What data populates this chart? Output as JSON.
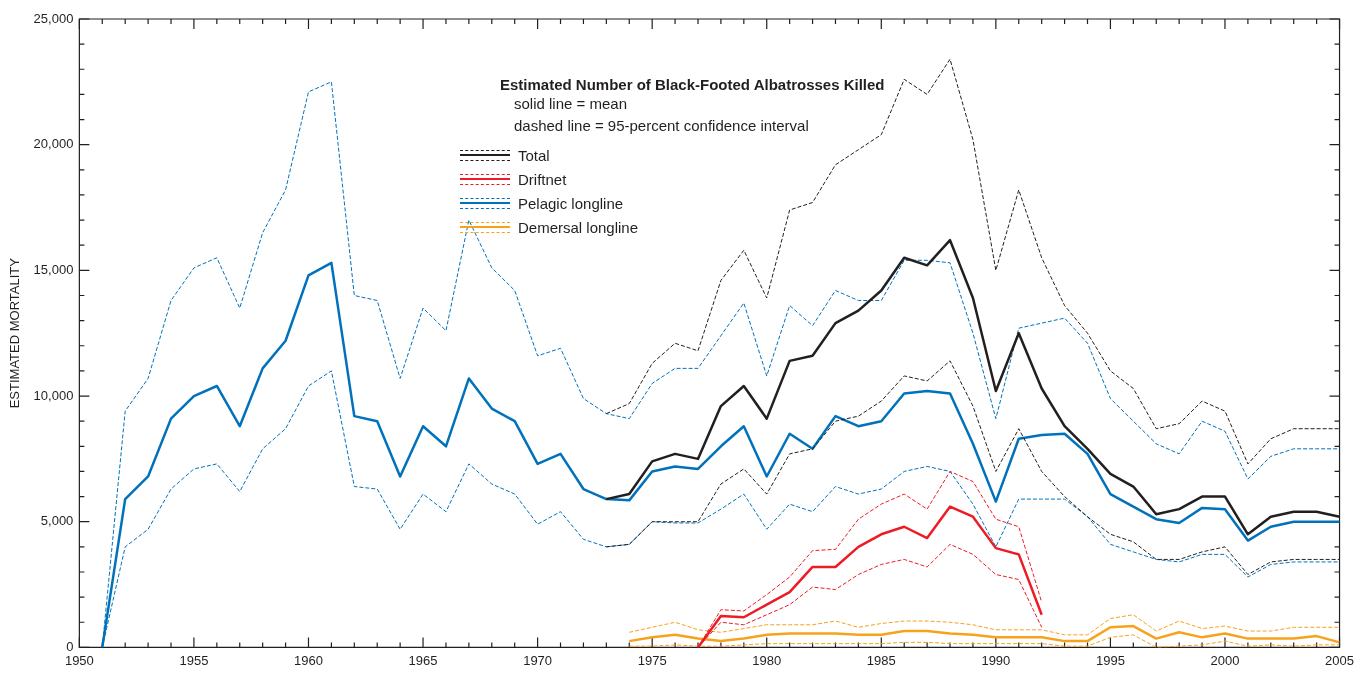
{
  "chart_data": {
    "type": "line",
    "title": "Estimated Number of Black-Footed Albatrosses Killed",
    "annotations": [
      "solid line = mean",
      "dashed line = 95-percent confidence interval"
    ],
    "ylabel": "ESTIMATED MORTALITY",
    "legend": "top",
    "line_style": "solid",
    "xlim": [
      1950,
      2005
    ],
    "ylim": [
      0,
      25000
    ],
    "xticks": [
      1950,
      {
        "value": 1951,
        "label": null
      },
      {
        "value": 1952,
        "label": null
      },
      {
        "value": 1953,
        "label": null
      },
      {
        "value": 1954,
        "label": null
      },
      1955,
      {
        "value": 1956,
        "label": null
      },
      {
        "value": 1957,
        "label": null
      },
      {
        "value": 1958,
        "label": null
      },
      {
        "value": 1959,
        "label": null
      },
      1960,
      {
        "value": 1961,
        "label": null
      },
      {
        "value": 1962,
        "label": null
      },
      {
        "value": 1963,
        "label": null
      },
      {
        "value": 1964,
        "label": null
      },
      1965,
      {
        "value": 1966,
        "label": null
      },
      {
        "value": 1967,
        "label": null
      },
      {
        "value": 1968,
        "label": null
      },
      {
        "value": 1969,
        "label": null
      },
      1970,
      {
        "value": 1971,
        "label": null
      },
      {
        "value": 1972,
        "label": null
      },
      {
        "value": 1973,
        "label": null
      },
      {
        "value": 1974,
        "label": null
      },
      1975,
      {
        "value": 1976,
        "label": null
      },
      {
        "value": 1977,
        "label": null
      },
      {
        "value": 1978,
        "label": null
      },
      {
        "value": 1979,
        "label": null
      },
      1980,
      {
        "value": 1981,
        "label": null
      },
      {
        "value": 1982,
        "label": null
      },
      {
        "value": 1983,
        "label": null
      },
      {
        "value": 1984,
        "label": null
      },
      1985,
      {
        "value": 1986,
        "label": null
      },
      {
        "value": 1987,
        "label": null
      },
      {
        "value": 1988,
        "label": null
      },
      {
        "value": 1989,
        "label": null
      },
      1990,
      {
        "value": 1991,
        "label": null
      },
      {
        "value": 1992,
        "label": null
      },
      {
        "value": 1993,
        "label": null
      },
      {
        "value": 1994,
        "label": null
      },
      1995,
      {
        "value": 1996,
        "label": null
      },
      {
        "value": 1997,
        "label": null
      },
      {
        "value": 1998,
        "label": null
      },
      {
        "value": 1999,
        "label": null
      },
      2000,
      {
        "value": 2001,
        "label": null
      },
      {
        "value": 2002,
        "label": null
      },
      {
        "value": 2003,
        "label": null
      },
      {
        "value": 2004,
        "label": null
      },
      2005
    ],
    "yticks": [
      0,
      {
        "value": 1000,
        "label": null
      },
      {
        "value": 2000,
        "label": null
      },
      {
        "value": 3000,
        "label": null
      },
      {
        "value": 4000,
        "label": null
      },
      {
        "value": 5000,
        "label": "5,000"
      },
      {
        "value": 6000,
        "label": null
      },
      {
        "value": 7000,
        "label": null
      },
      {
        "value": 8000,
        "label": null
      },
      {
        "value": 9000,
        "label": null
      },
      {
        "value": 10000,
        "label": "10,000"
      },
      {
        "value": 11000,
        "label": null
      },
      {
        "value": 12000,
        "label": null
      },
      {
        "value": 13000,
        "label": null
      },
      {
        "value": 14000,
        "label": null
      },
      {
        "value": 15000,
        "label": "15,000"
      },
      {
        "value": 16000,
        "label": null
      },
      {
        "value": 17000,
        "label": null
      },
      {
        "value": 18000,
        "label": null
      },
      {
        "value": 19000,
        "label": null
      },
      {
        "value": 20000,
        "label": "20,000"
      },
      {
        "value": 21000,
        "label": null
      },
      {
        "value": 22000,
        "label": null
      },
      {
        "value": 23000,
        "label": null
      },
      {
        "value": 24000,
        "label": null
      },
      {
        "value": 25000,
        "label": "25,000"
      }
    ],
    "series": [
      {
        "color": "#231f20",
        "line_style": "dashed",
        "x": [
          1973,
          1974,
          1975,
          1976,
          1977,
          1978,
          1979,
          1980,
          1981,
          1982,
          1983,
          1984,
          1985,
          1986,
          1987,
          1988,
          1989,
          1990,
          1991,
          1992,
          1993,
          1994,
          1995,
          1996,
          1997,
          1998,
          1999,
          2000,
          2001,
          2002,
          2003,
          2004,
          2005
        ],
        "values": [
          9300,
          9700,
          11300,
          12100,
          11800,
          14600,
          15800,
          13900,
          17400,
          17700,
          19200,
          19800,
          20400,
          22600,
          22000,
          23400,
          20200,
          15000,
          18200,
          15500,
          13600,
          12500,
          11000,
          10300,
          8700,
          8900,
          9800,
          9400,
          7300,
          8300,
          8700,
          8700,
          8700
        ]
      },
      {
        "name": "Total",
        "color": "#231f20",
        "x": [
          1973,
          1974,
          1975,
          1976,
          1977,
          1978,
          1979,
          1980,
          1981,
          1982,
          1983,
          1984,
          1985,
          1986,
          1987,
          1988,
          1989,
          1990,
          1991,
          1992,
          1993,
          1994,
          1995,
          1996,
          1997,
          1998,
          1999,
          2000,
          2001,
          2002,
          2003,
          2004,
          2005
        ],
        "values": [
          5900,
          6100,
          7400,
          7700,
          7500,
          9600,
          10400,
          9100,
          11400,
          11600,
          12900,
          13400,
          14200,
          15500,
          15200,
          16200,
          13900,
          10200,
          12500,
          10300,
          8800,
          7900,
          6900,
          6400,
          5300,
          5500,
          6000,
          6000,
          4500,
          5200,
          5400,
          5400,
          5200
        ]
      },
      {
        "color": "#231f20",
        "line_style": "dashed",
        "x": [
          1973,
          1974,
          1975,
          1976,
          1977,
          1978,
          1979,
          1980,
          1981,
          1982,
          1983,
          1984,
          1985,
          1986,
          1987,
          1988,
          1989,
          1990,
          1991,
          1992,
          1993,
          1994,
          1995,
          1996,
          1997,
          1998,
          1999,
          2000,
          2001,
          2002,
          2003,
          2004,
          2005
        ],
        "values": [
          4000,
          4100,
          5000,
          5000,
          5000,
          6500,
          7100,
          6100,
          7700,
          7900,
          9000,
          9200,
          9800,
          10800,
          10600,
          11400,
          9600,
          7000,
          8700,
          7000,
          6000,
          5200,
          4500,
          4200,
          3500,
          3500,
          3800,
          4000,
          2900,
          3400,
          3500,
          3500,
          3500
        ]
      },
      {
        "color": "#ed1c24",
        "line_style": "dashed",
        "x": [
          1977,
          1978,
          1979,
          1980,
          1981,
          1982,
          1983,
          1984,
          1985,
          1986,
          1987,
          1988,
          1989,
          1990,
          1991,
          1992
        ],
        "values": [
          0,
          1500,
          1450,
          2100,
          2800,
          3850,
          3900,
          5100,
          5700,
          6100,
          5500,
          7000,
          6600,
          5100,
          4800,
          1800
        ]
      },
      {
        "name": "Driftnet",
        "color": "#ed1c24",
        "x": [
          1977,
          1978,
          1979,
          1980,
          1981,
          1982,
          1983,
          1984,
          1985,
          1986,
          1987,
          1988,
          1989,
          1990,
          1991,
          1992
        ],
        "values": [
          0,
          1250,
          1200,
          1700,
          2200,
          3200,
          3200,
          4000,
          4500,
          4800,
          4350,
          5600,
          5200,
          3950,
          3700,
          1300
        ]
      },
      {
        "color": "#ed1c24",
        "line_style": "dashed",
        "x": [
          1977,
          1978,
          1979,
          1980,
          1981,
          1982,
          1983,
          1984,
          1985,
          1986,
          1987,
          1988,
          1989,
          1990,
          1991,
          1992
        ],
        "values": [
          0,
          1000,
          900,
          1300,
          1700,
          2400,
          2300,
          2900,
          3300,
          3500,
          3200,
          4100,
          3700,
          2900,
          2700,
          800
        ]
      },
      {
        "color": "#0072bc",
        "line_style": "dashed",
        "x": [
          1951,
          1952,
          1953,
          1954,
          1955,
          1956,
          1957,
          1958,
          1959,
          1960,
          1961,
          1962,
          1963,
          1964,
          1965,
          1966,
          1967,
          1968,
          1969,
          1970,
          1971,
          1972,
          1973,
          1974,
          1975,
          1976,
          1977,
          1978,
          1979,
          1980,
          1981,
          1982,
          1983,
          1984,
          1985,
          1986,
          1987,
          1988,
          1989,
          1990,
          1991,
          1992,
          1993,
          1994,
          1995,
          1996,
          1997,
          1998,
          1999,
          2000,
          2001,
          2002,
          2003,
          2004,
          2005
        ],
        "values": [
          0,
          9400,
          10700,
          13800,
          15100,
          15500,
          13500,
          16500,
          18200,
          22100,
          22500,
          14000,
          13800,
          10700,
          13500,
          12600,
          17000,
          15100,
          14200,
          11600,
          11900,
          9900,
          9300,
          9100,
          10500,
          11100,
          11100,
          12400,
          13700,
          10800,
          13600,
          12800,
          14200,
          13800,
          13800,
          15400,
          15400,
          15300,
          12500,
          9100,
          12700,
          12900,
          13100,
          12100,
          9900,
          9000,
          8100,
          7700,
          9000,
          8600,
          6700,
          7600,
          7900,
          7900,
          7900
        ]
      },
      {
        "name": "Pelagic longline",
        "color": "#0072bc",
        "x": [
          1951,
          1952,
          1953,
          1954,
          1955,
          1956,
          1957,
          1958,
          1959,
          1960,
          1961,
          1962,
          1963,
          1964,
          1965,
          1966,
          1967,
          1968,
          1969,
          1970,
          1971,
          1972,
          1973,
          1974,
          1975,
          1976,
          1977,
          1978,
          1979,
          1980,
          1981,
          1982,
          1983,
          1984,
          1985,
          1986,
          1987,
          1988,
          1989,
          1990,
          1991,
          1992,
          1993,
          1994,
          1995,
          1996,
          1997,
          1998,
          1999,
          2000,
          2001,
          2002,
          2003,
          2004,
          2005
        ],
        "values": [
          0,
          5900,
          6800,
          9100,
          10000,
          10400,
          8800,
          11100,
          12200,
          14800,
          15300,
          9200,
          9000,
          6800,
          8800,
          8000,
          10700,
          9500,
          9000,
          7300,
          7700,
          6300,
          5900,
          5850,
          7000,
          7200,
          7100,
          8000,
          8800,
          6800,
          8500,
          7900,
          9200,
          8800,
          9000,
          10100,
          10200,
          10100,
          8100,
          5800,
          8300,
          8450,
          8500,
          7700,
          6100,
          5600,
          5100,
          4950,
          5550,
          5500,
          4250,
          4800,
          5000,
          5000,
          5000
        ]
      },
      {
        "color": "#0072bc",
        "line_style": "dashed",
        "x": [
          1951,
          1952,
          1953,
          1954,
          1955,
          1956,
          1957,
          1958,
          1959,
          1960,
          1961,
          1962,
          1963,
          1964,
          1965,
          1966,
          1967,
          1968,
          1969,
          1970,
          1971,
          1972,
          1973,
          1974,
          1975,
          1976,
          1977,
          1978,
          1979,
          1980,
          1981,
          1982,
          1983,
          1984,
          1985,
          1986,
          1987,
          1988,
          1989,
          1990,
          1991,
          1992,
          1993,
          1994,
          1995,
          1996,
          1997,
          1998,
          1999,
          2000,
          2001,
          2002,
          2003,
          2004,
          2005
        ],
        "values": [
          0,
          4000,
          4700,
          6300,
          7100,
          7300,
          6200,
          7900,
          8700,
          10400,
          11000,
          6400,
          6300,
          4700,
          6100,
          5400,
          7300,
          6500,
          6100,
          4900,
          5400,
          4300,
          4000,
          4100,
          5000,
          4950,
          4950,
          5500,
          6100,
          4700,
          5700,
          5400,
          6400,
          6100,
          6300,
          7000,
          7200,
          7000,
          5700,
          4000,
          5900,
          5900,
          5900,
          5200,
          4100,
          3800,
          3500,
          3400,
          3700,
          3700,
          2800,
          3300,
          3400,
          3400,
          3400
        ]
      },
      {
        "color": "#f7a21b",
        "line_style": "dashed",
        "x": [
          1974,
          1975,
          1976,
          1977,
          1978,
          1979,
          1980,
          1981,
          1982,
          1983,
          1984,
          1985,
          1986,
          1987,
          1988,
          1989,
          1990,
          1991,
          1992,
          1993,
          1994,
          1995,
          1996,
          1997,
          1998,
          1999,
          2000,
          2001,
          2002,
          2003,
          2004,
          2005
        ],
        "values": [
          600,
          800,
          1000,
          700,
          600,
          750,
          900,
          900,
          900,
          1050,
          800,
          950,
          1050,
          1050,
          1000,
          900,
          700,
          700,
          700,
          500,
          500,
          1150,
          1300,
          650,
          1050,
          750,
          850,
          650,
          650,
          800,
          800,
          800
        ]
      },
      {
        "name": "Demersal longline",
        "color": "#f7a21b",
        "x": [
          1974,
          1975,
          1976,
          1977,
          1978,
          1979,
          1980,
          1981,
          1982,
          1983,
          1984,
          1985,
          1986,
          1987,
          1988,
          1989,
          1990,
          1991,
          1992,
          1993,
          1994,
          1995,
          1996,
          1997,
          1998,
          1999,
          2000,
          2001,
          2002,
          2003,
          2004,
          2005
        ],
        "values": [
          250,
          400,
          500,
          350,
          250,
          350,
          500,
          550,
          550,
          550,
          500,
          500,
          650,
          650,
          550,
          500,
          400,
          400,
          400,
          250,
          250,
          800,
          850,
          350,
          600,
          400,
          550,
          350,
          350,
          350,
          450,
          200
        ]
      },
      {
        "color": "#f7a21b",
        "line_style": "dashed",
        "x": [
          1974,
          1975,
          1976,
          1977,
          1978,
          1979,
          1980,
          1981,
          1982,
          1983,
          1984,
          1985,
          1986,
          1987,
          1988,
          1989,
          1990,
          1991,
          1992,
          1993,
          1994,
          1995,
          1996,
          1997,
          1998,
          1999,
          2000,
          2001,
          2002,
          2003,
          2004,
          2005
        ],
        "values": [
          50,
          50,
          100,
          50,
          50,
          100,
          150,
          150,
          150,
          150,
          150,
          150,
          200,
          200,
          150,
          150,
          150,
          150,
          150,
          50,
          50,
          400,
          500,
          0,
          50,
          100,
          250,
          50,
          100,
          50,
          100,
          100
        ]
      }
    ]
  }
}
